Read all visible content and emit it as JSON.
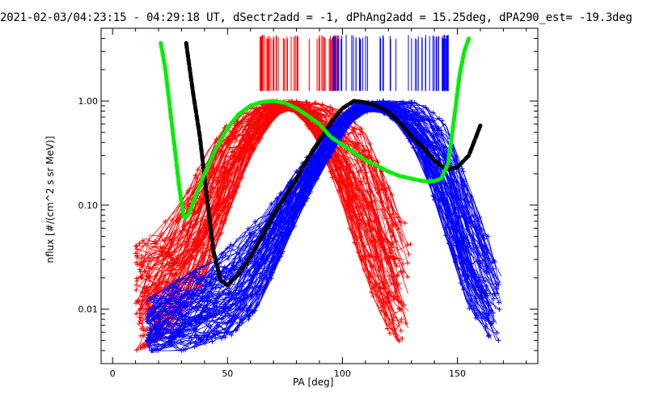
{
  "chart_data": {
    "type": "line",
    "title": "2021-02-03/04:23:15 - 04:29:18 UT, dSectr2add = -1, dPhAng2add = 15.25deg, dPA290_est= -19.3deg",
    "xlabel": "PA [deg]",
    "ylabel": "nflux [#/(cm^2 s sr MeV)]",
    "xlim": [
      -5,
      185
    ],
    "ylim": [
      0.003,
      5
    ],
    "yscale": "log",
    "xticks": [
      0,
      50,
      100,
      150
    ],
    "xtick_labels": [
      "0",
      "50",
      "100",
      "150"
    ],
    "yticks": [
      0.01,
      0.1,
      1.0
    ],
    "ytick_labels": [
      "0.01",
      "0.10",
      "1.00"
    ],
    "colors": {
      "red": "#ff0000",
      "blue": "#0000ff",
      "black": "#000000",
      "green": "#00ee00"
    },
    "series": [
      {
        "name": "",
        "color": "black",
        "style": "thick-dashed",
        "x": [
          32,
          35,
          38,
          41,
          44,
          47,
          50,
          55,
          60,
          65,
          70,
          75,
          80,
          85,
          90,
          95,
          100,
          105,
          110,
          115,
          120,
          125,
          130,
          135,
          140,
          145,
          150,
          155,
          160
        ],
        "y": [
          3.6,
          1.2,
          0.45,
          0.12,
          0.035,
          0.019,
          0.017,
          0.022,
          0.032,
          0.05,
          0.08,
          0.12,
          0.18,
          0.28,
          0.42,
          0.62,
          0.85,
          1.0,
          0.97,
          0.9,
          0.78,
          0.62,
          0.46,
          0.36,
          0.27,
          0.22,
          0.23,
          0.3,
          0.58
        ]
      },
      {
        "name": "",
        "color": "green",
        "style": "thick-dashed",
        "x": [
          21,
          23,
          26,
          29,
          31,
          33,
          36,
          40,
          45,
          50,
          55,
          60,
          65,
          70,
          75,
          80,
          85,
          90,
          95,
          100,
          105,
          110,
          115,
          120,
          125,
          130,
          135,
          140,
          143,
          146,
          149,
          151,
          153,
          155
        ],
        "y": [
          3.6,
          2.0,
          0.55,
          0.15,
          0.075,
          0.08,
          0.12,
          0.2,
          0.35,
          0.55,
          0.75,
          0.9,
          0.98,
          1.0,
          0.96,
          0.85,
          0.72,
          0.6,
          0.45,
          0.38,
          0.32,
          0.27,
          0.24,
          0.21,
          0.19,
          0.18,
          0.17,
          0.17,
          0.18,
          0.25,
          0.8,
          1.8,
          3.0,
          4.0
        ]
      },
      {
        "name": "",
        "color": "red",
        "style": "envelope",
        "x": [
          10,
          20,
          30,
          40,
          50,
          60,
          70,
          75,
          80,
          90,
          100,
          110,
          120,
          130
        ],
        "y_low": [
          0.004,
          0.005,
          0.008,
          0.02,
          0.08,
          0.3,
          0.7,
          0.85,
          0.8,
          0.4,
          0.1,
          0.02,
          0.006,
          0.004
        ],
        "y_high": [
          0.04,
          0.06,
          0.1,
          0.3,
          0.6,
          0.9,
          1.0,
          1.0,
          1.0,
          0.95,
          0.8,
          0.5,
          0.15,
          0.05
        ]
      },
      {
        "name": "",
        "color": "blue",
        "style": "envelope",
        "x": [
          15,
          30,
          45,
          55,
          65,
          75,
          85,
          95,
          105,
          115,
          125,
          135,
          145,
          155,
          165,
          170
        ],
        "y_low": [
          0.004,
          0.004,
          0.005,
          0.006,
          0.012,
          0.04,
          0.12,
          0.3,
          0.7,
          0.85,
          0.6,
          0.25,
          0.05,
          0.01,
          0.005,
          0.005
        ],
        "y_high": [
          0.012,
          0.02,
          0.03,
          0.05,
          0.08,
          0.15,
          0.3,
          0.6,
          0.95,
          1.0,
          1.0,
          0.95,
          0.6,
          0.15,
          0.04,
          0.02
        ]
      }
    ],
    "ticks_top": {
      "red_x_range": [
        64,
        98
      ],
      "blue_x_range": [
        96,
        146
      ]
    }
  }
}
